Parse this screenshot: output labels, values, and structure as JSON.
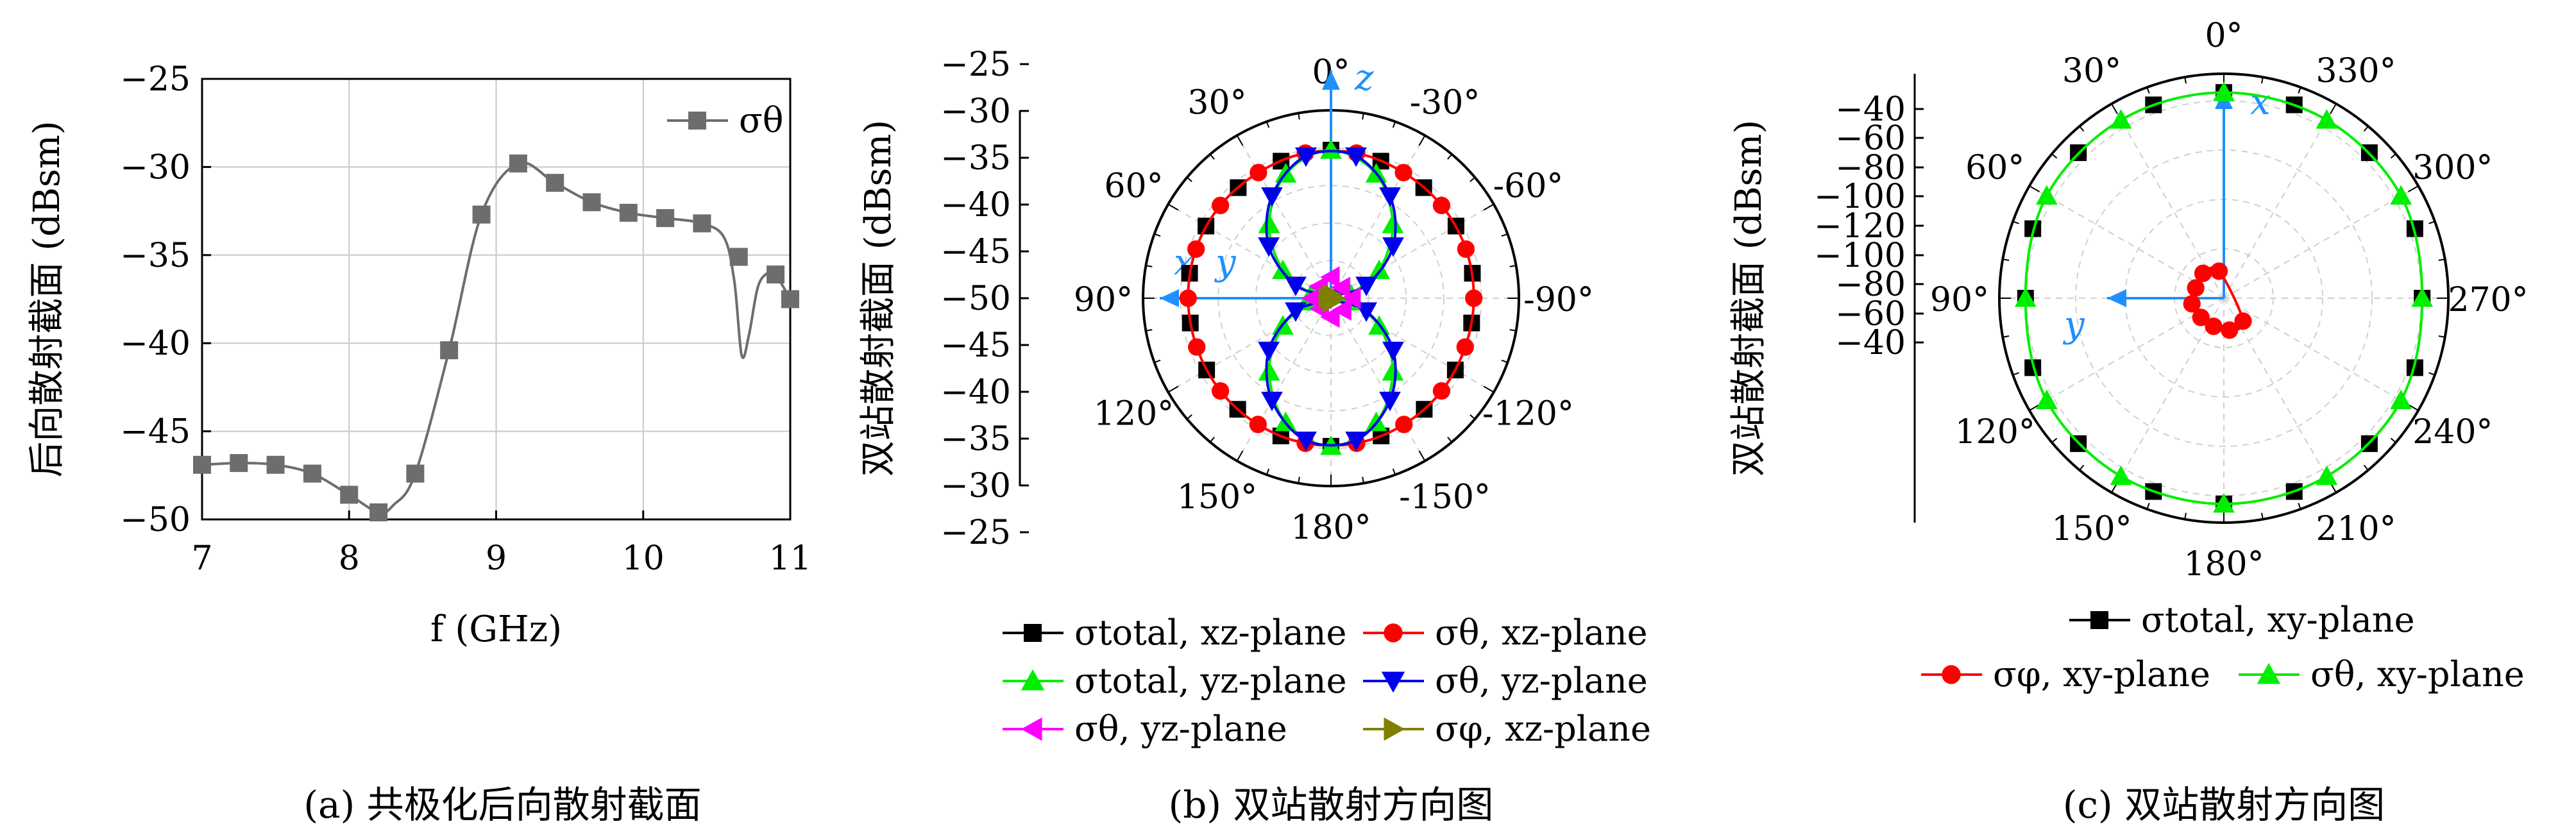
{
  "chart_data": [
    {
      "type": "line",
      "panel": "a",
      "caption": "(a) 共极化后向散射截面",
      "xlabel": "f (GHz)",
      "ylabel": "后向散射截面 (dBsm)",
      "xlim": [
        7,
        11
      ],
      "ylim": [
        -50,
        -25
      ],
      "xticks": [
        7,
        8,
        9,
        10,
        11
      ],
      "yticks": [
        -25,
        -30,
        -35,
        -40,
        -45,
        -50
      ],
      "grid": true,
      "legend_position": "top-right",
      "series": [
        {
          "name": "σθ",
          "color": "#6d6d6d",
          "marker": "square",
          "x": [
            7.0,
            7.25,
            7.5,
            7.75,
            8.0,
            8.2,
            8.45,
            8.68,
            8.9,
            9.15,
            9.4,
            9.65,
            9.9,
            10.15,
            10.4,
            10.65,
            10.9,
            11.0
          ],
          "y": [
            -46.9,
            -46.8,
            -46.9,
            -47.4,
            -48.6,
            -49.6,
            -47.4,
            -40.4,
            -32.7,
            -29.8,
            -30.9,
            -32.0,
            -32.6,
            -32.9,
            -33.2,
            -35.1,
            -36.1,
            -37.5
          ],
          "curve_x": [
            7.0,
            7.25,
            7.5,
            7.75,
            8.0,
            8.2,
            8.3,
            8.45,
            8.68,
            8.9,
            9.15,
            9.4,
            9.65,
            9.9,
            10.15,
            10.4,
            10.55,
            10.62,
            10.67,
            10.72,
            10.78,
            10.85,
            10.9,
            11.0
          ],
          "curve_y": [
            -46.9,
            -46.8,
            -46.9,
            -47.4,
            -48.6,
            -49.6,
            -49.2,
            -47.4,
            -40.4,
            -32.7,
            -29.8,
            -30.9,
            -32.0,
            -32.6,
            -32.9,
            -33.2,
            -34.0,
            -36.5,
            -40.7,
            -39.5,
            -36.8,
            -36.0,
            -36.1,
            -37.5
          ]
        }
      ]
    },
    {
      "type": "polar",
      "panel": "b",
      "caption": "(b) 双站散射方向图",
      "ylabel": "双站散射截面 (dBsm)",
      "rlim": [
        -50,
        -25
      ],
      "rticks": [
        -25,
        -30,
        -35,
        -40,
        -45,
        -50
      ],
      "angle_labels": [
        "0°",
        "30°",
        "60°",
        "90°",
        "120°",
        "150°",
        "180°",
        "-30°",
        "-60°",
        "-90°",
        "-120°",
        "-150°"
      ],
      "axis_labels": [
        "z",
        "x",
        "y"
      ],
      "legend": [
        "σtotal, xz-plane",
        "σθ, xz-plane",
        "σtotal, yz-plane",
        "σθ, yz-plane",
        "σθ, yz-plane",
        "σφ, xz-plane"
      ],
      "series": [
        {
          "name": "σtotal, xz-plane",
          "color": "#000000",
          "marker": "square",
          "angles_deg": [
            0,
            20,
            40,
            60,
            80,
            100,
            120,
            140,
            160,
            180,
            200,
            220,
            240,
            260,
            280,
            300,
            320,
            340
          ],
          "values": [
            -30.3,
            -30.6,
            -30.8,
            -30.8,
            -30.9,
            -31.0,
            -30.9,
            -30.7,
            -30.5,
            -30.3,
            -30.5,
            -30.7,
            -30.9,
            -31.0,
            -30.9,
            -30.8,
            -30.8,
            -30.6
          ]
        },
        {
          "name": "σθ, xz-plane",
          "color": "#ff0000",
          "marker": "circle",
          "angles_deg": [
            10,
            30,
            50,
            70,
            90,
            110,
            130,
            150,
            170,
            190,
            210,
            230,
            250,
            270,
            290,
            310,
            330,
            350
          ],
          "values": [
            -30.4,
            -30.7,
            -30.8,
            -30.9,
            -31.0,
            -31.0,
            -30.8,
            -30.6,
            -30.4,
            -30.4,
            -30.6,
            -30.8,
            -31.0,
            -31.0,
            -30.9,
            -30.8,
            -30.7,
            -30.4
          ]
        },
        {
          "name": "σtotal, yz-plane",
          "color": "#00ee00",
          "marker": "triangle-up",
          "angles_deg": [
            0,
            20,
            40,
            60,
            80,
            100,
            120,
            140,
            160,
            180,
            200,
            220,
            240,
            260,
            280,
            300,
            320,
            340
          ],
          "values": [
            -30.3,
            -32.4,
            -37.2,
            -42.6,
            -47.3,
            -47.3,
            -42.6,
            -37.2,
            -32.4,
            -30.3,
            -32.4,
            -37.2,
            -42.6,
            -47.3,
            -47.3,
            -42.6,
            -37.2,
            -32.4
          ]
        },
        {
          "name": "σθ, yz-plane",
          "color": "#0000ee",
          "marker": "triangle-down",
          "angles_deg": [
            10,
            30,
            50,
            70,
            90,
            110,
            130,
            150,
            170,
            190,
            210,
            230,
            250,
            270,
            290,
            310,
            330,
            350
          ],
          "values": [
            -30.8,
            -34.3,
            -39.2,
            -45.0,
            -50.0,
            -45.0,
            -39.2,
            -34.3,
            -30.8,
            -30.8,
            -34.3,
            -39.2,
            -45.0,
            -50.0,
            -45.0,
            -39.2,
            -34.3,
            -30.8
          ]
        },
        {
          "name": "σθ, yz-plane",
          "color": "#ff00ff",
          "marker": "triangle-left",
          "angles_deg": [
            0,
            45,
            90,
            135,
            180,
            225,
            270,
            315
          ],
          "values": [
            -47.2,
            -47.8,
            -47.5,
            -48.0,
            -47.5,
            -47.8,
            -47.2,
            -48.0
          ]
        },
        {
          "name": "σφ, xz-plane",
          "color": "#808000",
          "marker": "triangle-right",
          "angles_deg": [
            0,
            90,
            180,
            270
          ],
          "values": [
            -49.5,
            -49.5,
            -49.5,
            -49.5
          ]
        }
      ]
    },
    {
      "type": "polar",
      "panel": "c",
      "caption": "(c) 双站散射方向图",
      "ylabel": "双站散射截面 (dBsm)",
      "rlim": [
        -120,
        -30
      ],
      "rticks": [
        -40,
        -60,
        -80,
        -100,
        -120,
        -100,
        -80,
        -60,
        -40
      ],
      "angle_labels": [
        "0°",
        "30°",
        "60°",
        "90°",
        "120°",
        "150°",
        "180°",
        "210°",
        "240°",
        "270°",
        "300°",
        "330°"
      ],
      "axis_labels": [
        "x",
        "y"
      ],
      "legend": [
        "σtotal, xy-plane",
        "σφ, xy-plane",
        "σθ, xy-plane"
      ],
      "series": [
        {
          "name": "σtotal, xy-plane",
          "color": "#000000",
          "marker": "square",
          "angles_deg": [
            0,
            20,
            45,
            70,
            90,
            110,
            135,
            160,
            180,
            200,
            225,
            250,
            270,
            290,
            315,
            340
          ],
          "values": [
            -37.5,
            -37.5,
            -37.5,
            -38.5,
            -40.5,
            -38.5,
            -37.5,
            -37.5,
            -37.5,
            -37.5,
            -37.5,
            -38.5,
            -40.5,
            -38.5,
            -37.5,
            -37.5
          ]
        },
        {
          "name": "σφ, xy-plane",
          "color": "#ff0000",
          "marker": "circle",
          "angles_deg": [
            10,
            40,
            70,
            100,
            130,
            160,
            190,
            220
          ],
          "values": [
            -109,
            -107,
            -108,
            -107,
            -108,
            -108,
            -107,
            -108
          ]
        },
        {
          "name": "σθ, xy-plane",
          "color": "#00ee00",
          "marker": "triangle-up",
          "angles_deg": [
            0,
            30,
            60,
            90,
            120,
            150,
            180,
            210,
            240,
            270,
            300,
            330
          ],
          "values": [
            -37.5,
            -37.5,
            -38.0,
            -40.5,
            -38.0,
            -37.5,
            -37.5,
            -37.5,
            -38.0,
            -40.5,
            -38.0,
            -37.5
          ]
        }
      ]
    }
  ]
}
